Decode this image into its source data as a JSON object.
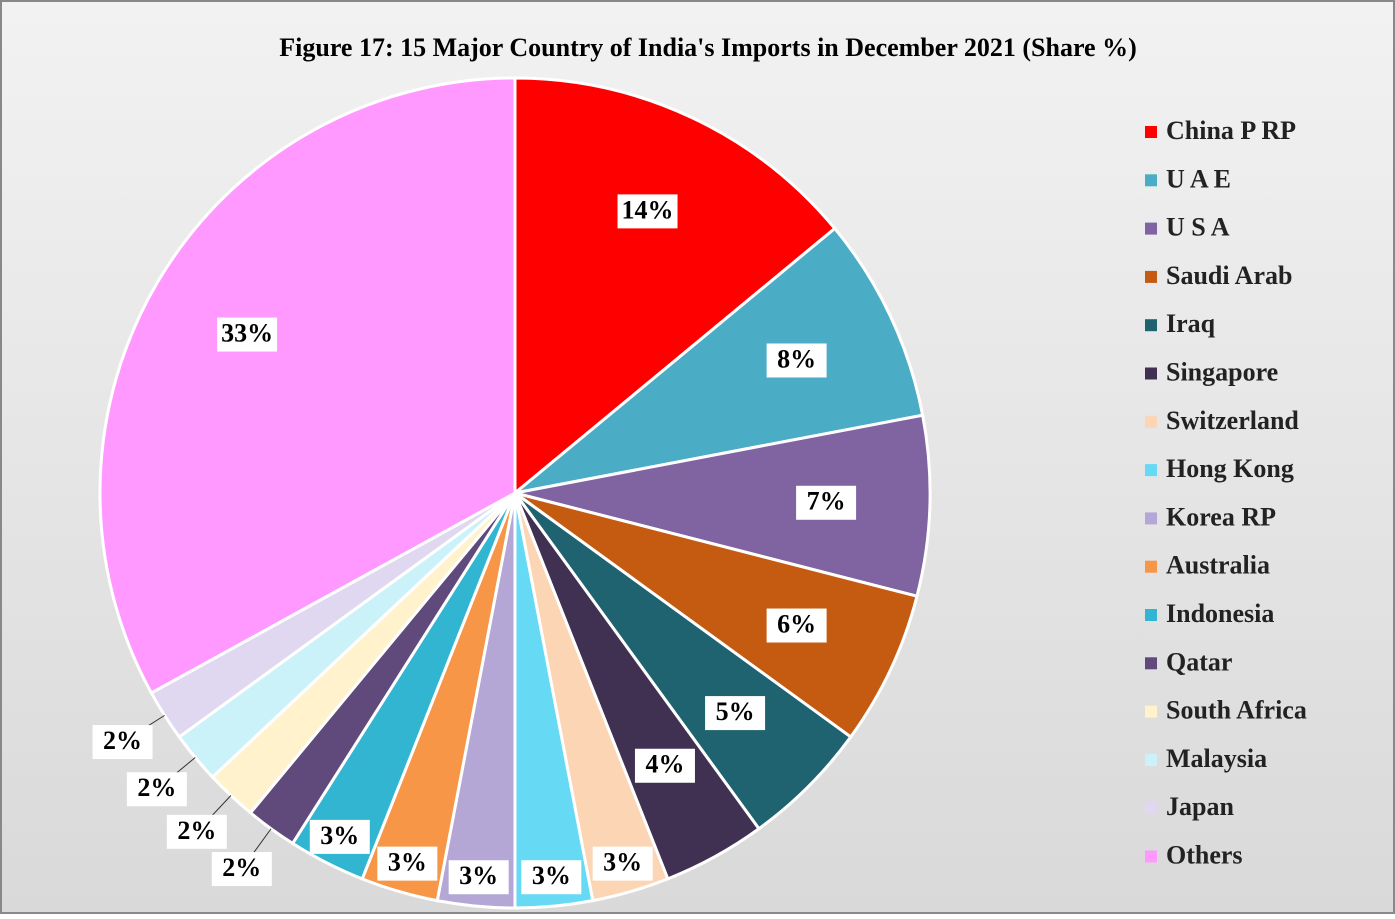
{
  "chart_data": {
    "type": "pie",
    "title": "Figure 17: 15 Major Country of India's Imports in December 2021  (Share %)",
    "categories": [
      "China P RP",
      "U A E",
      "U S A",
      "Saudi Arab",
      "Iraq",
      "Singapore",
      "Switzerland",
      "Hong Kong",
      "Korea RP",
      "Australia",
      "Indonesia",
      "Qatar",
      "South Africa",
      "Malaysia",
      "Japan",
      "Others"
    ],
    "values": [
      14,
      8,
      7,
      6,
      5,
      4,
      3,
      3,
      3,
      3,
      3,
      2,
      2,
      2,
      2,
      33
    ],
    "value_labels": [
      "14%",
      "8%",
      "7%",
      "6%",
      "5%",
      "4%",
      "3%",
      "3%",
      "3%",
      "3%",
      "3%",
      "2%",
      "2%",
      "2%",
      "2%",
      "33%"
    ],
    "colors": [
      "#ff0000",
      "#4bacc6",
      "#8064a2",
      "#c55a11",
      "#1f6270",
      "#403152",
      "#fcd5b4",
      "#66d9f5",
      "#b4a7d6",
      "#f79646",
      "#31b5d0",
      "#604a7b",
      "#fff2cc",
      "#ccf2f9",
      "#e0d7f0",
      "#ff99ff"
    ],
    "legend": "right"
  }
}
